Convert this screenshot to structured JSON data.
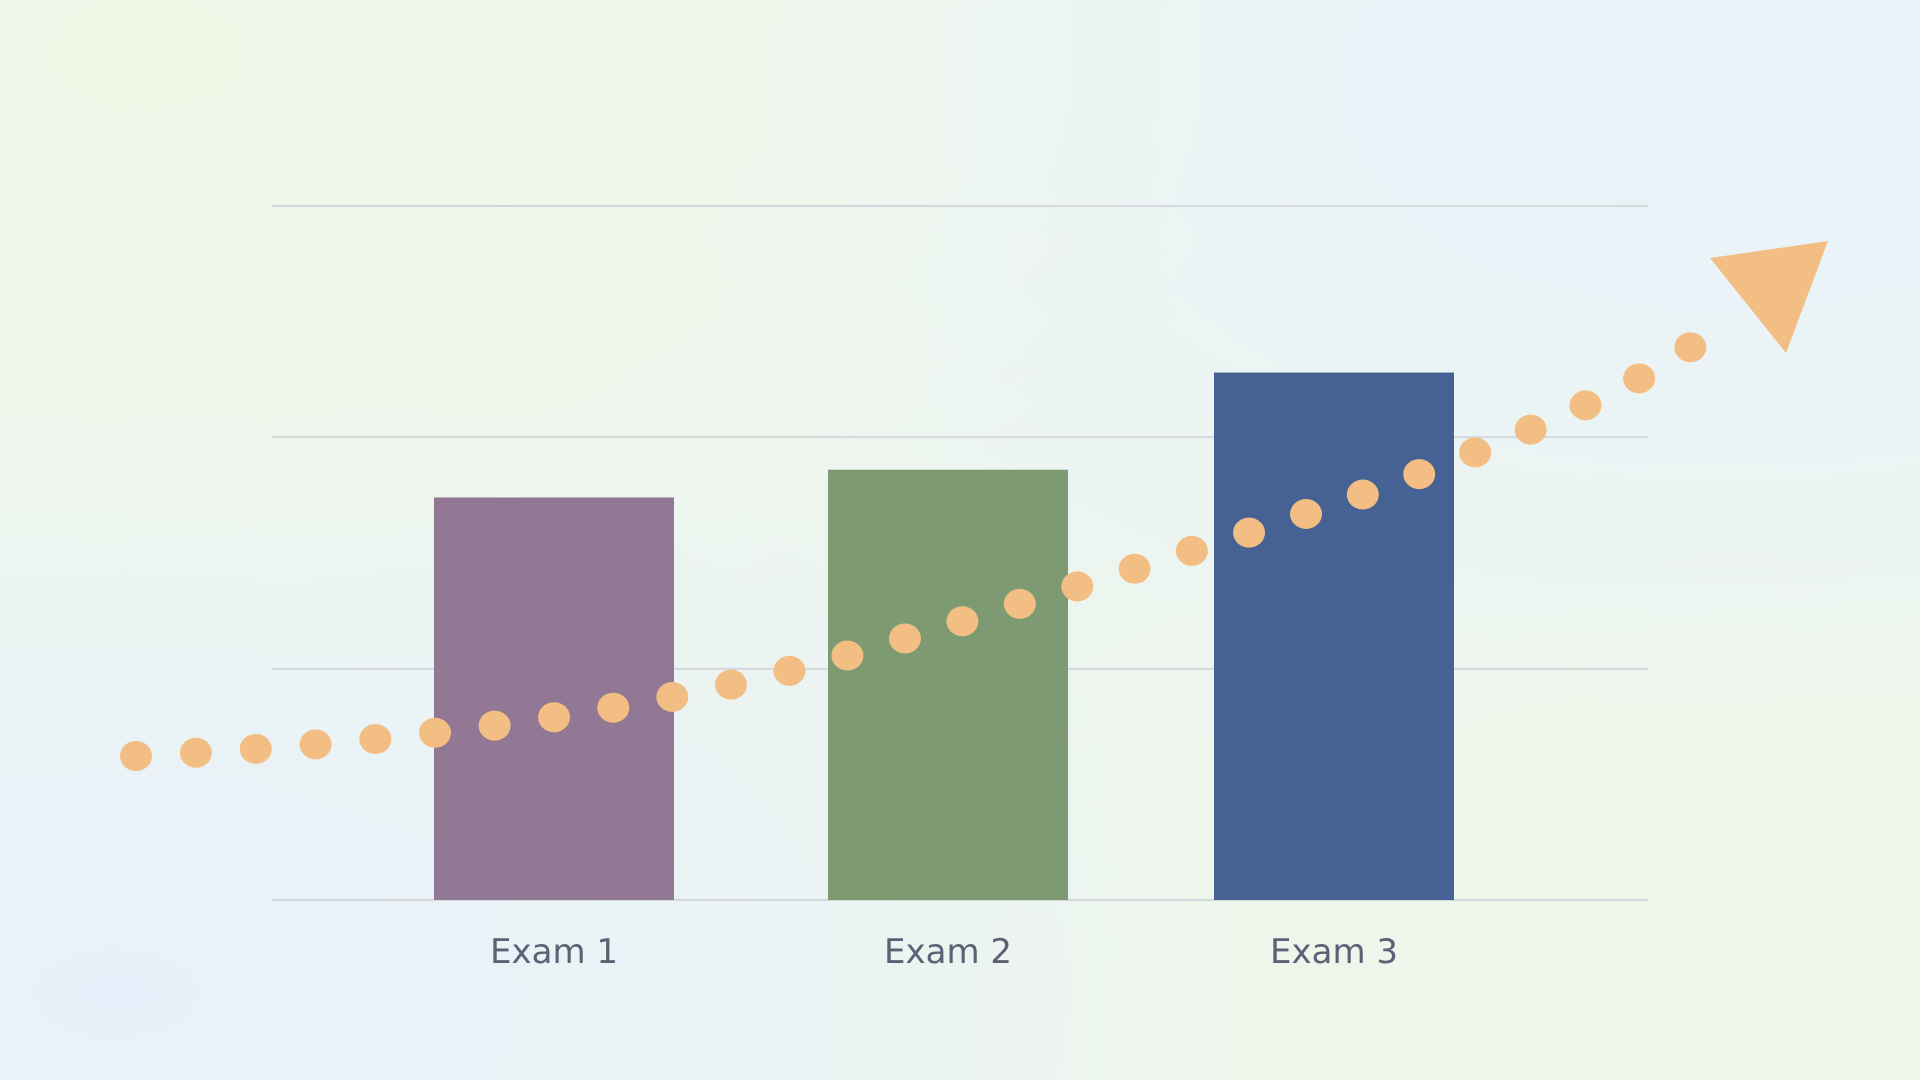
{
  "chart_data": {
    "type": "bar",
    "categories": [
      "Exam 1",
      "Exam 2",
      "Exam 3"
    ],
    "values": [
      58,
      62,
      76
    ],
    "ylim": [
      0,
      100
    ],
    "grid": true,
    "gridlines": [
      0,
      33.3,
      66.7,
      100
    ],
    "bar_colors": [
      "#927894",
      "#7d9a72",
      "#466294"
    ],
    "overlay": {
      "type": "dotted-trend-arrow",
      "color": "#f2be84",
      "direction": "upward"
    }
  }
}
